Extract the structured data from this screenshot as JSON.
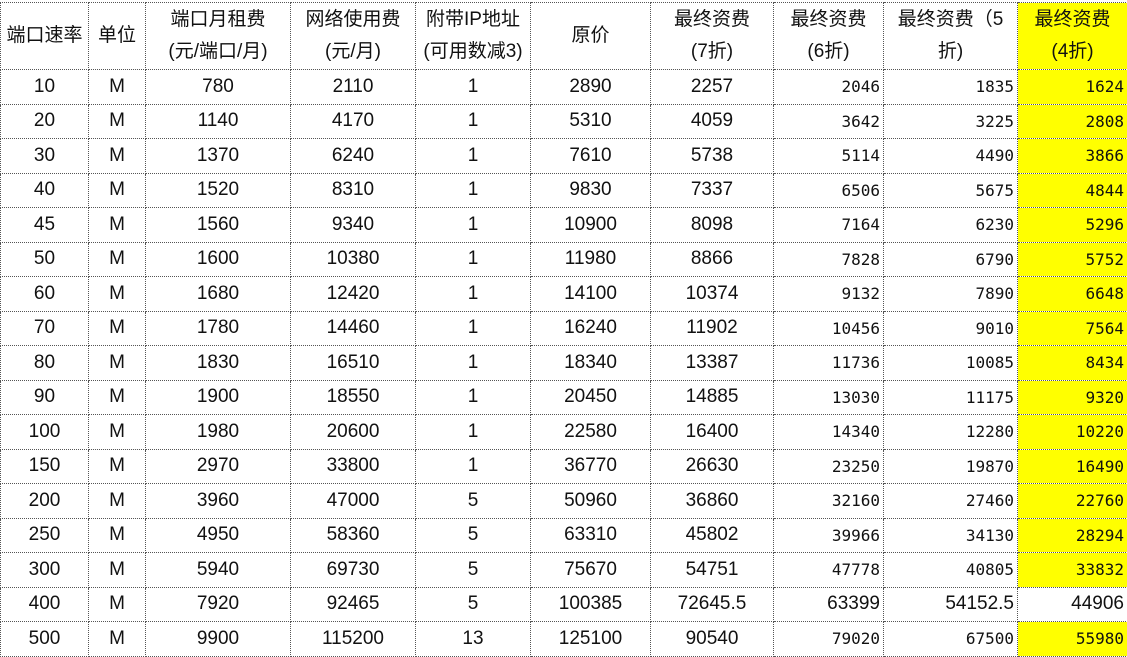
{
  "highlight_color": "#ffff00",
  "headers": [
    [
      "端口速率",
      ""
    ],
    [
      "单位",
      ""
    ],
    [
      "端口月租费",
      "(元/端口/月)"
    ],
    [
      "网络使用费",
      "(元/月)"
    ],
    [
      "附带IP地址",
      "(可用数减3)"
    ],
    [
      "原价",
      ""
    ],
    [
      "最终资费",
      "(7折)"
    ],
    [
      "最终资费",
      "(6折)"
    ],
    [
      "最终资费（5",
      "折)"
    ],
    [
      "最终资费",
      "(4折)"
    ]
  ],
  "rows": [
    [
      "10",
      "M",
      "780",
      "2110",
      "1",
      "2890",
      "2257",
      "2046",
      "1835",
      "1624"
    ],
    [
      "20",
      "M",
      "1140",
      "4170",
      "1",
      "5310",
      "4059",
      "3642",
      "3225",
      "2808"
    ],
    [
      "30",
      "M",
      "1370",
      "6240",
      "1",
      "7610",
      "5738",
      "5114",
      "4490",
      "3866"
    ],
    [
      "40",
      "M",
      "1520",
      "8310",
      "1",
      "9830",
      "7337",
      "6506",
      "5675",
      "4844"
    ],
    [
      "45",
      "M",
      "1560",
      "9340",
      "1",
      "10900",
      "8098",
      "7164",
      "6230",
      "5296"
    ],
    [
      "50",
      "M",
      "1600",
      "10380",
      "1",
      "11980",
      "8866",
      "7828",
      "6790",
      "5752"
    ],
    [
      "60",
      "M",
      "1680",
      "12420",
      "1",
      "14100",
      "10374",
      "9132",
      "7890",
      "6648"
    ],
    [
      "70",
      "M",
      "1780",
      "14460",
      "1",
      "16240",
      "11902",
      "10456",
      "9010",
      "7564"
    ],
    [
      "80",
      "M",
      "1830",
      "16510",
      "1",
      "18340",
      "13387",
      "11736",
      "10085",
      "8434"
    ],
    [
      "90",
      "M",
      "1900",
      "18550",
      "1",
      "20450",
      "14885",
      "13030",
      "11175",
      "9320"
    ],
    [
      "100",
      "M",
      "1980",
      "20600",
      "1",
      "22580",
      "16400",
      "14340",
      "12280",
      "10220"
    ],
    [
      "150",
      "M",
      "2970",
      "33800",
      "1",
      "36770",
      "26630",
      "23250",
      "19870",
      "16490"
    ],
    [
      "200",
      "M",
      "3960",
      "47000",
      "5",
      "50960",
      "36860",
      "32160",
      "27460",
      "22760"
    ],
    [
      "250",
      "M",
      "4950",
      "58360",
      "5",
      "63310",
      "45802",
      "39966",
      "34130",
      "28294"
    ],
    [
      "300",
      "M",
      "5940",
      "69730",
      "5",
      "75670",
      "54751",
      "47778",
      "40805",
      "33832"
    ],
    [
      "400",
      "M",
      "7920",
      "92465",
      "5",
      "100385",
      "72645.5",
      "63399",
      "54152.5",
      "44906"
    ],
    [
      "500",
      "M",
      "9900",
      "115200",
      "13",
      "125100",
      "90540",
      "79020",
      "67500",
      "55980"
    ]
  ]
}
